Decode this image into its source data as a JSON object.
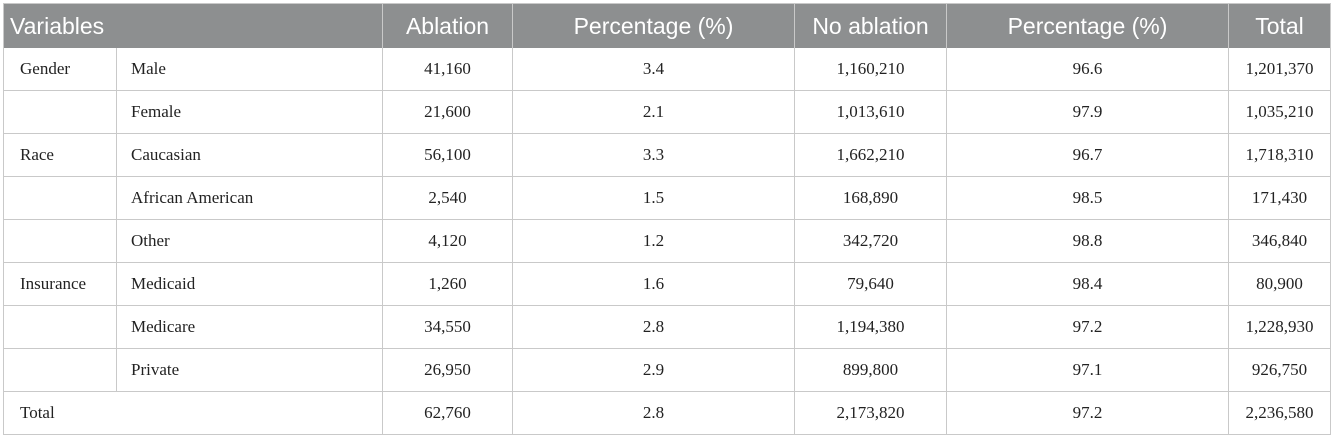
{
  "table": {
    "headers": [
      "Variables",
      "Ablation",
      "Percentage (%)",
      "No ablation",
      "Percentage (%)",
      "Total"
    ],
    "rows": [
      {
        "group": "Gender",
        "sub": "Male",
        "ablation": "41,160",
        "abl_pct": "3.4",
        "no_ablation": "1,160,210",
        "no_abl_pct": "96.6",
        "total": "1,201,370"
      },
      {
        "group": "",
        "sub": "Female",
        "ablation": "21,600",
        "abl_pct": "2.1",
        "no_ablation": "1,013,610",
        "no_abl_pct": "97.9",
        "total": "1,035,210"
      },
      {
        "group": "Race",
        "sub": "Caucasian",
        "ablation": "56,100",
        "abl_pct": "3.3",
        "no_ablation": "1,662,210",
        "no_abl_pct": "96.7",
        "total": "1,718,310"
      },
      {
        "group": "",
        "sub": "African American",
        "ablation": "2,540",
        "abl_pct": "1.5",
        "no_ablation": "168,890",
        "no_abl_pct": "98.5",
        "total": "171,430"
      },
      {
        "group": "",
        "sub": "Other",
        "ablation": "4,120",
        "abl_pct": "1.2",
        "no_ablation": "342,720",
        "no_abl_pct": "98.8",
        "total": "346,840"
      },
      {
        "group": "Insurance",
        "sub": "Medicaid",
        "ablation": "1,260",
        "abl_pct": "1.6",
        "no_ablation": "79,640",
        "no_abl_pct": "98.4",
        "total": "80,900"
      },
      {
        "group": "",
        "sub": "Medicare",
        "ablation": "34,550",
        "abl_pct": "2.8",
        "no_ablation": "1,194,380",
        "no_abl_pct": "97.2",
        "total": "1,228,930"
      },
      {
        "group": "",
        "sub": "Private",
        "ablation": "26,950",
        "abl_pct": "2.9",
        "no_ablation": "899,800",
        "no_abl_pct": "97.1",
        "total": "926,750"
      }
    ],
    "total_row": {
      "label": "Total",
      "ablation": "62,760",
      "abl_pct": "2.8",
      "no_ablation": "2,173,820",
      "no_abl_pct": "97.2",
      "total": "2,236,580"
    }
  },
  "colors": {
    "header_bg": "#8d8f90",
    "grid": "#c9c9c9",
    "text": "#222222"
  }
}
